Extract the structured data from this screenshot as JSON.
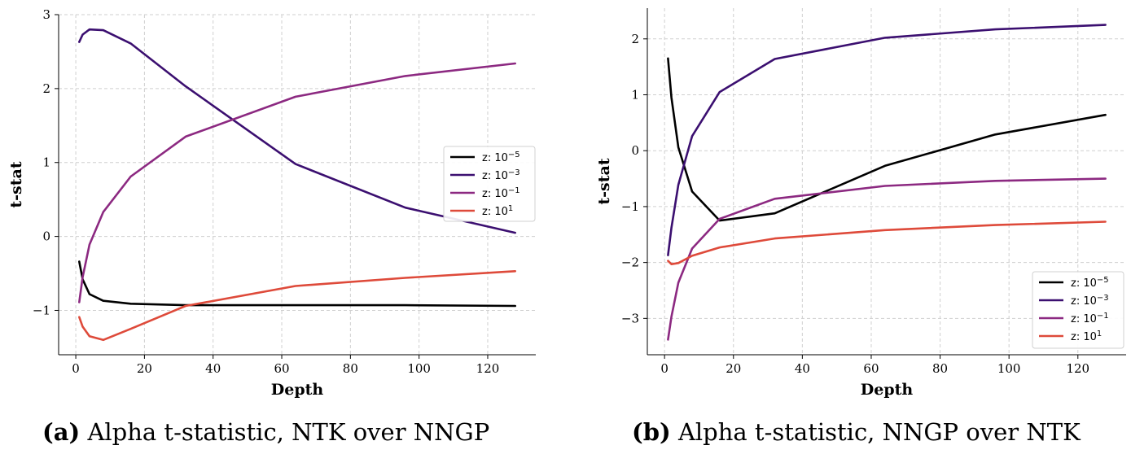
{
  "chart_data": [
    {
      "type": "line",
      "panel_tag": "(a)",
      "caption": "Alpha t-statistic, NTK over NNGP",
      "xlabel": "Depth",
      "ylabel": "t-stat",
      "xlim": [
        -5,
        134
      ],
      "ylim": [
        -1.6,
        3.0
      ],
      "xticks": [
        0,
        20,
        40,
        60,
        80,
        100,
        120
      ],
      "yticks": [
        -1,
        0,
        1,
        2,
        3
      ],
      "grid": true,
      "legend_position": "center-right",
      "series": [
        {
          "name": "z: 10",
          "exp": "−5",
          "color": "#000000",
          "x": [
            1,
            2,
            4,
            8,
            16,
            32,
            64,
            96,
            128
          ],
          "y": [
            -0.34,
            -0.58,
            -0.78,
            -0.87,
            -0.91,
            -0.93,
            -0.93,
            -0.93,
            -0.94
          ]
        },
        {
          "name": "z: 10",
          "exp": "−3",
          "color": "#3b0f70",
          "x": [
            1,
            2,
            4,
            8,
            16,
            32,
            64,
            96,
            128
          ],
          "y": [
            2.63,
            2.73,
            2.8,
            2.79,
            2.61,
            2.03,
            0.98,
            0.39,
            0.05
          ]
        },
        {
          "name": "z: 10",
          "exp": "−1",
          "color": "#8c2981",
          "x": [
            1,
            2,
            4,
            8,
            16,
            32,
            64,
            96,
            128
          ],
          "y": [
            -0.89,
            -0.55,
            -0.11,
            0.33,
            0.81,
            1.35,
            1.89,
            2.17,
            2.34
          ]
        },
        {
          "name": "z: 10",
          "exp": "1",
          "color": "#de4a3a",
          "x": [
            1,
            2,
            4,
            8,
            16,
            32,
            64,
            96,
            128
          ],
          "y": [
            -1.09,
            -1.22,
            -1.35,
            -1.4,
            -1.25,
            -0.94,
            -0.67,
            -0.56,
            -0.47
          ]
        }
      ]
    },
    {
      "type": "line",
      "panel_tag": "(b)",
      "caption": "Alpha t-statistic, NNGP over NTK",
      "xlabel": "Depth",
      "ylabel": "t-stat",
      "xlim": [
        -5,
        134
      ],
      "ylim": [
        -3.65,
        2.55
      ],
      "xticks": [
        0,
        20,
        40,
        60,
        80,
        100,
        120
      ],
      "yticks": [
        -3,
        -2,
        -1,
        0,
        1,
        2
      ],
      "grid": true,
      "legend_position": "lower-right",
      "series": [
        {
          "name": "z: 10",
          "exp": "−5",
          "color": "#000000",
          "x": [
            1,
            2,
            4,
            8,
            16,
            32,
            64,
            96,
            128
          ],
          "y": [
            1.65,
            0.95,
            0.06,
            -0.73,
            -1.25,
            -1.12,
            -0.27,
            0.29,
            0.64
          ]
        },
        {
          "name": "z: 10",
          "exp": "−3",
          "color": "#3b0f70",
          "x": [
            1,
            2,
            4,
            8,
            16,
            32,
            64,
            96,
            128
          ],
          "y": [
            -1.87,
            -1.38,
            -0.61,
            0.26,
            1.05,
            1.64,
            2.02,
            2.17,
            2.25
          ]
        },
        {
          "name": "z: 10",
          "exp": "−1",
          "color": "#8c2981",
          "x": [
            1,
            2,
            4,
            8,
            16,
            32,
            64,
            96,
            128
          ],
          "y": [
            -3.38,
            -2.97,
            -2.36,
            -1.75,
            -1.22,
            -0.86,
            -0.63,
            -0.54,
            -0.5
          ]
        },
        {
          "name": "z: 10",
          "exp": "1",
          "color": "#de4a3a",
          "x": [
            1,
            2,
            4,
            8,
            16,
            32,
            64,
            96,
            128
          ],
          "y": [
            -1.97,
            -2.03,
            -2.01,
            -1.88,
            -1.73,
            -1.57,
            -1.42,
            -1.33,
            -1.27
          ]
        }
      ]
    }
  ]
}
